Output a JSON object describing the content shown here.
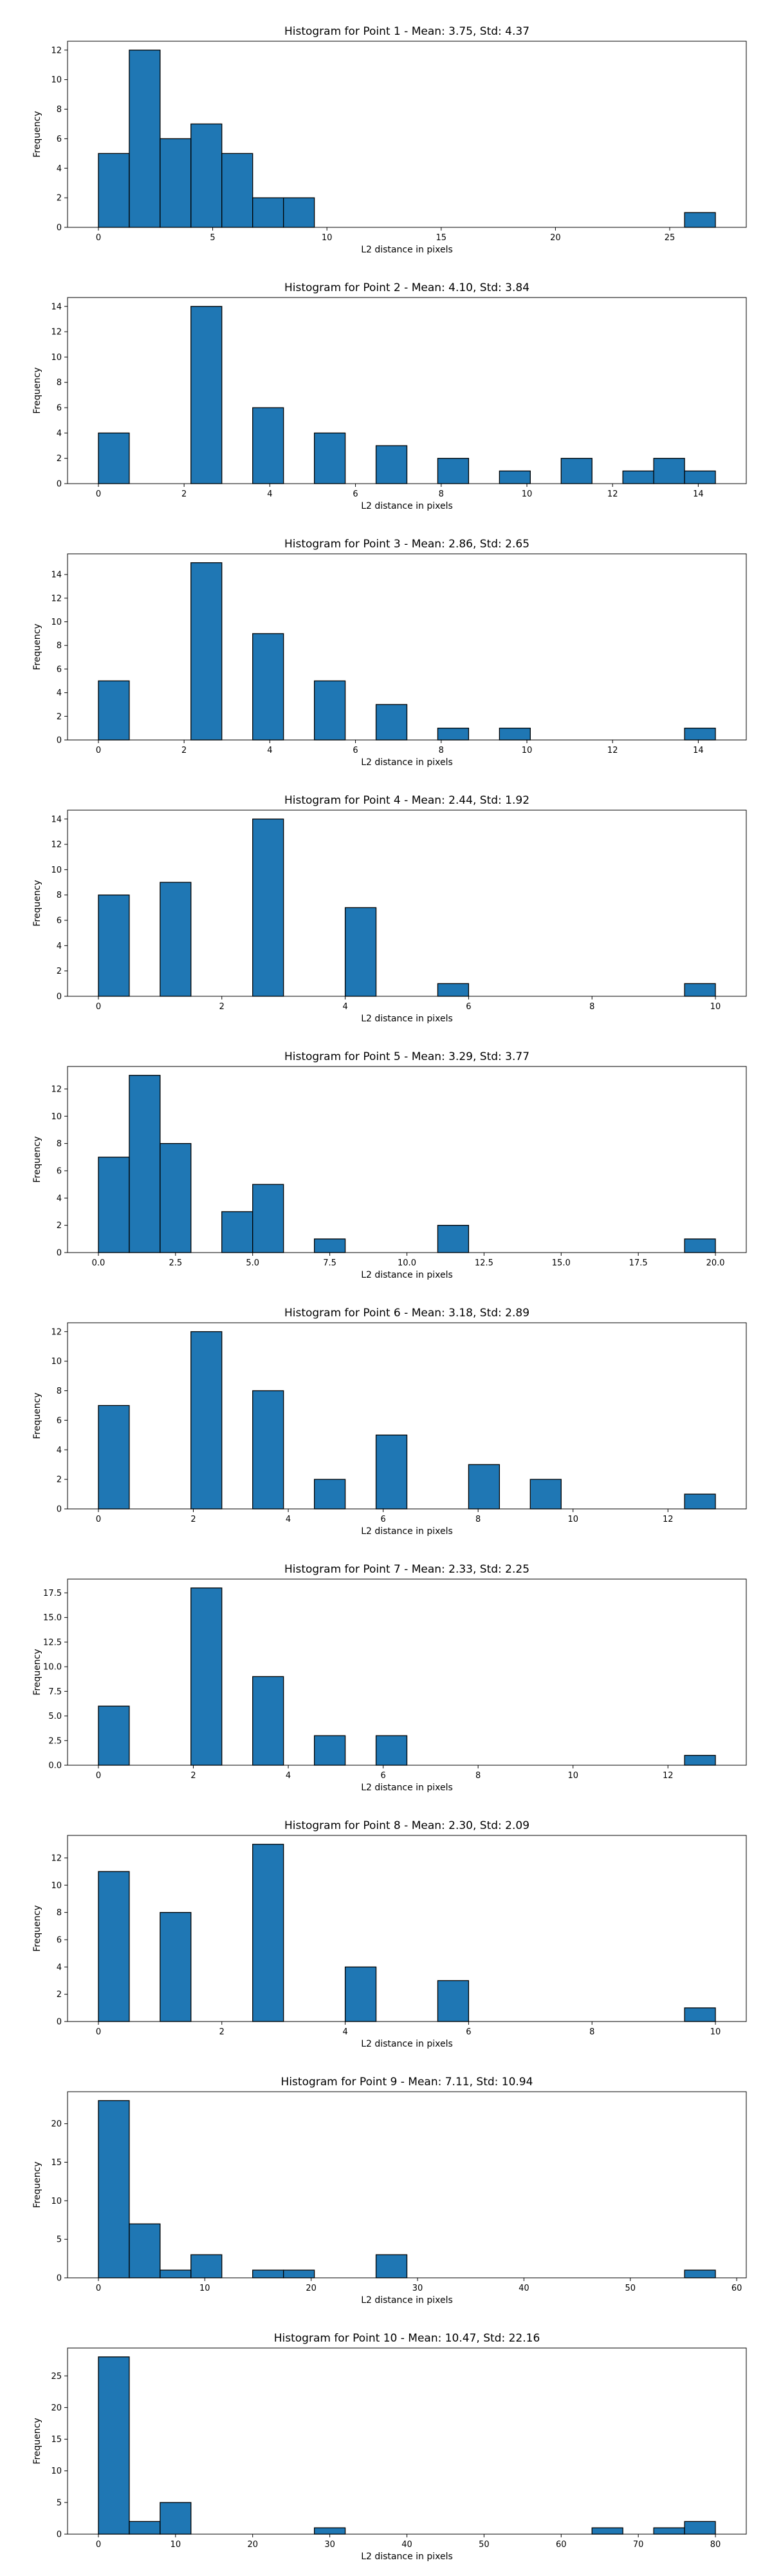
{
  "chart_data": [
    {
      "type": "bar",
      "title": "Histogram for Point 1 - Mean: 3.75, Std: 4.37",
      "xlabel": "L2 distance in pixels",
      "ylabel": "Frequency",
      "xlim": [
        -1.35,
        28.35
      ],
      "ylim": [
        0,
        12.6
      ],
      "xticks": [
        0,
        5,
        10,
        15,
        20,
        25
      ],
      "xtick_labels": [
        "0",
        "5",
        "10",
        "15",
        "20",
        "25"
      ],
      "yticks": [
        0,
        2,
        4,
        6,
        8,
        10,
        12
      ],
      "ytick_labels": [
        "0",
        "2",
        "4",
        "6",
        "8",
        "10",
        "12"
      ],
      "bin_start": 0,
      "bin_width": 1.35,
      "counts": [
        5,
        12,
        6,
        7,
        5,
        2,
        2,
        0,
        0,
        0,
        0,
        0,
        0,
        0,
        0,
        0,
        0,
        0,
        0,
        1
      ],
      "color": "#1f77b4"
    },
    {
      "type": "bar",
      "title": "Histogram for Point 2 - Mean: 4.10, Std: 3.84",
      "xlabel": "L2 distance in pixels",
      "ylabel": "Frequency",
      "xlim": [
        -0.72,
        15.12
      ],
      "ylim": [
        0,
        14.7
      ],
      "xticks": [
        0,
        2,
        4,
        6,
        8,
        10,
        12,
        14
      ],
      "xtick_labels": [
        "0",
        "2",
        "4",
        "6",
        "8",
        "10",
        "12",
        "14"
      ],
      "yticks": [
        0,
        2,
        4,
        6,
        8,
        10,
        12,
        14
      ],
      "ytick_labels": [
        "0",
        "2",
        "4",
        "6",
        "8",
        "10",
        "12",
        "14"
      ],
      "bin_start": 0,
      "bin_width": 0.72,
      "counts": [
        4,
        0,
        0,
        14,
        0,
        6,
        0,
        4,
        0,
        3,
        0,
        2,
        0,
        1,
        0,
        2,
        0,
        1,
        2,
        1
      ],
      "color": "#1f77b4"
    },
    {
      "type": "bar",
      "title": "Histogram for Point 3 - Mean: 2.86, Std: 2.65",
      "xlabel": "L2 distance in pixels",
      "ylabel": "Frequency",
      "xlim": [
        -0.72,
        15.12
      ],
      "ylim": [
        0,
        15.75
      ],
      "xticks": [
        0,
        2,
        4,
        6,
        8,
        10,
        12,
        14
      ],
      "xtick_labels": [
        "0",
        "2",
        "4",
        "6",
        "8",
        "10",
        "12",
        "14"
      ],
      "yticks": [
        0,
        2,
        4,
        6,
        8,
        10,
        12,
        14
      ],
      "ytick_labels": [
        "0",
        "2",
        "4",
        "6",
        "8",
        "10",
        "12",
        "14"
      ],
      "bin_start": 0,
      "bin_width": 0.72,
      "counts": [
        5,
        0,
        0,
        15,
        0,
        9,
        0,
        5,
        0,
        3,
        0,
        1,
        0,
        1,
        0,
        0,
        0,
        0,
        0,
        1
      ],
      "color": "#1f77b4"
    },
    {
      "type": "bar",
      "title": "Histogram for Point 4 - Mean: 2.44, Std: 1.92",
      "xlabel": "L2 distance in pixels",
      "ylabel": "Frequency",
      "xlim": [
        -0.5,
        10.5
      ],
      "ylim": [
        0,
        14.7
      ],
      "xticks": [
        0,
        2,
        4,
        6,
        8,
        10
      ],
      "xtick_labels": [
        "0",
        "2",
        "4",
        "6",
        "8",
        "10"
      ],
      "yticks": [
        0,
        2,
        4,
        6,
        8,
        10,
        12,
        14
      ],
      "ytick_labels": [
        "0",
        "2",
        "4",
        "6",
        "8",
        "10",
        "12",
        "14"
      ],
      "bin_start": 0,
      "bin_width": 0.5,
      "counts": [
        8,
        0,
        9,
        0,
        0,
        14,
        0,
        0,
        7,
        0,
        0,
        1,
        0,
        0,
        0,
        0,
        0,
        0,
        0,
        1
      ],
      "color": "#1f77b4"
    },
    {
      "type": "bar",
      "title": "Histogram for Point 5 - Mean: 3.29, Std: 3.77",
      "xlabel": "L2 distance in pixels",
      "ylabel": "Frequency",
      "xlim": [
        -1.0,
        21.0
      ],
      "ylim": [
        0,
        13.65
      ],
      "xticks": [
        0,
        2.5,
        5,
        7.5,
        10,
        12.5,
        15,
        17.5,
        20
      ],
      "xtick_labels": [
        "0.0",
        "2.5",
        "5.0",
        "7.5",
        "10.0",
        "12.5",
        "15.0",
        "17.5",
        "20.0"
      ],
      "yticks": [
        0,
        2,
        4,
        6,
        8,
        10,
        12
      ],
      "ytick_labels": [
        "0",
        "2",
        "4",
        "6",
        "8",
        "10",
        "12"
      ],
      "bin_start": 0,
      "bin_width": 1.0,
      "counts": [
        7,
        13,
        8,
        0,
        3,
        5,
        0,
        1,
        0,
        0,
        0,
        2,
        0,
        0,
        0,
        0,
        0,
        0,
        0,
        1
      ],
      "color": "#1f77b4"
    },
    {
      "type": "bar",
      "title": "Histogram for Point 6 - Mean: 3.18, Std: 2.89",
      "xlabel": "L2 distance in pixels",
      "ylabel": "Frequency",
      "xlim": [
        -0.65,
        13.65
      ],
      "ylim": [
        0,
        12.6
      ],
      "xticks": [
        0,
        2,
        4,
        6,
        8,
        10,
        12
      ],
      "xtick_labels": [
        "0",
        "2",
        "4",
        "6",
        "8",
        "10",
        "12"
      ],
      "yticks": [
        0,
        2,
        4,
        6,
        8,
        10,
        12
      ],
      "ytick_labels": [
        "0",
        "2",
        "4",
        "6",
        "8",
        "10",
        "12"
      ],
      "bin_start": 0,
      "bin_width": 0.65,
      "counts": [
        7,
        0,
        0,
        12,
        0,
        8,
        0,
        2,
        0,
        5,
        0,
        0,
        3,
        0,
        2,
        0,
        0,
        0,
        0,
        1
      ],
      "color": "#1f77b4"
    },
    {
      "type": "bar",
      "title": "Histogram for Point 7 - Mean: 2.33, Std: 2.25",
      "xlabel": "L2 distance in pixels",
      "ylabel": "Frequency",
      "xlim": [
        -0.65,
        13.65
      ],
      "ylim": [
        0,
        18.9
      ],
      "xticks": [
        0,
        2,
        4,
        6,
        8,
        10,
        12
      ],
      "xtick_labels": [
        "0",
        "2",
        "4",
        "6",
        "8",
        "10",
        "12"
      ],
      "yticks": [
        0,
        2.5,
        5,
        7.5,
        10,
        12.5,
        15,
        17.5
      ],
      "ytick_labels": [
        "0.0",
        "2.5",
        "5.0",
        "7.5",
        "10.0",
        "12.5",
        "15.0",
        "17.5"
      ],
      "bin_start": 0,
      "bin_width": 0.65,
      "counts": [
        6,
        0,
        0,
        18,
        0,
        9,
        0,
        3,
        0,
        3,
        0,
        0,
        0,
        0,
        0,
        0,
        0,
        0,
        0,
        1
      ],
      "color": "#1f77b4"
    },
    {
      "type": "bar",
      "title": "Histogram for Point 8 - Mean: 2.30, Std: 2.09",
      "xlabel": "L2 distance in pixels",
      "ylabel": "Frequency",
      "xlim": [
        -0.5,
        10.5
      ],
      "ylim": [
        0,
        13.65
      ],
      "xticks": [
        0,
        2,
        4,
        6,
        8,
        10
      ],
      "xtick_labels": [
        "0",
        "2",
        "4",
        "6",
        "8",
        "10"
      ],
      "yticks": [
        0,
        2,
        4,
        6,
        8,
        10,
        12
      ],
      "ytick_labels": [
        "0",
        "2",
        "4",
        "6",
        "8",
        "10",
        "12"
      ],
      "bin_start": 0,
      "bin_width": 0.5,
      "counts": [
        11,
        0,
        8,
        0,
        0,
        13,
        0,
        0,
        4,
        0,
        0,
        3,
        0,
        0,
        0,
        0,
        0,
        0,
        0,
        1
      ],
      "color": "#1f77b4"
    },
    {
      "type": "bar",
      "title": "Histogram for Point 9 - Mean: 7.11, Std: 10.94",
      "xlabel": "L2 distance in pixels",
      "ylabel": "Frequency",
      "xlim": [
        -2.9,
        60.9
      ],
      "ylim": [
        0,
        24.15
      ],
      "xticks": [
        0,
        10,
        20,
        30,
        40,
        50,
        60
      ],
      "xtick_labels": [
        "0",
        "10",
        "20",
        "30",
        "40",
        "50",
        "60"
      ],
      "yticks": [
        0,
        5,
        10,
        15,
        20
      ],
      "ytick_labels": [
        "0",
        "5",
        "10",
        "15",
        "20"
      ],
      "bin_start": 0,
      "bin_width": 2.9,
      "counts": [
        23,
        7,
        1,
        3,
        0,
        1,
        1,
        0,
        0,
        3,
        0,
        0,
        0,
        0,
        0,
        0,
        0,
        0,
        0,
        1
      ],
      "color": "#1f77b4"
    },
    {
      "type": "bar",
      "title": "Histogram for Point 10 - Mean: 10.47, Std: 22.16",
      "xlabel": "L2 distance in pixels",
      "ylabel": "Frequency",
      "xlim": [
        -4.0,
        84.0
      ],
      "ylim": [
        0,
        29.4
      ],
      "xticks": [
        0,
        10,
        20,
        30,
        40,
        50,
        60,
        70,
        80
      ],
      "xtick_labels": [
        "0",
        "10",
        "20",
        "30",
        "40",
        "50",
        "60",
        "70",
        "80"
      ],
      "yticks": [
        0,
        5,
        10,
        15,
        20,
        25
      ],
      "ytick_labels": [
        "0",
        "5",
        "10",
        "15",
        "20",
        "25"
      ],
      "bin_start": 0,
      "bin_width": 4.0,
      "counts": [
        28,
        2,
        5,
        0,
        0,
        0,
        0,
        1,
        0,
        0,
        0,
        0,
        0,
        0,
        0,
        0,
        1,
        0,
        1,
        2
      ],
      "color": "#1f77b4"
    }
  ]
}
